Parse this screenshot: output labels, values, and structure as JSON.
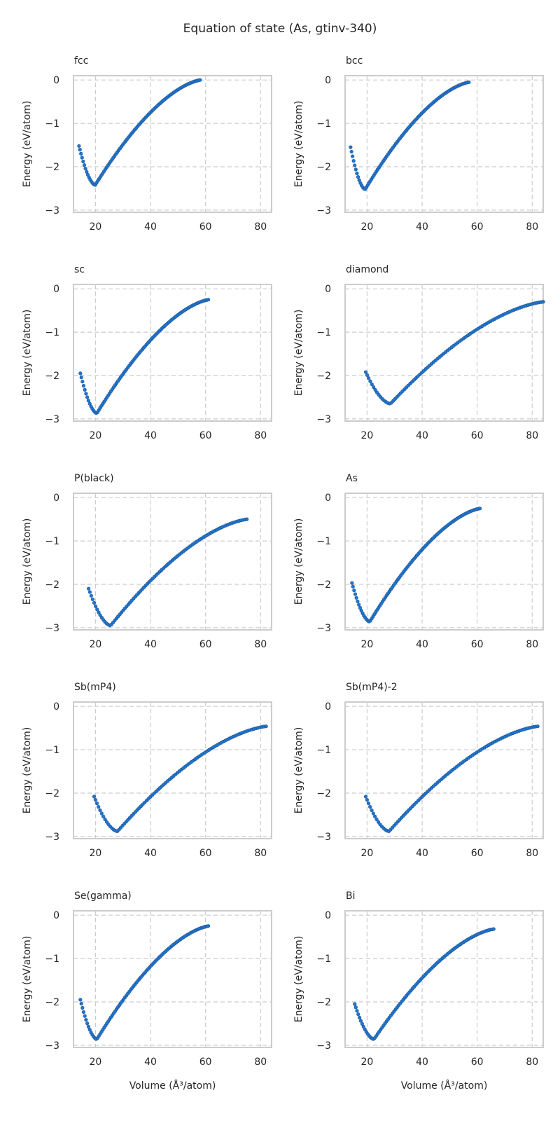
{
  "figure": {
    "suptitle": "Equation of state (As, gtinv-340)"
  },
  "style": {
    "marker_color": "#1f77d0",
    "marker_edge": "#1f4e8c",
    "grid_color": "#cccccc",
    "frame_color": "#cccccc",
    "text_color": "#262626",
    "grid": true,
    "grid_style": "dashed"
  },
  "chart_data": [
    {
      "type": "scatter",
      "title": "fcc",
      "xlabel": "",
      "ylabel": "Energy (eV/atom)",
      "xlim": [
        12,
        84
      ],
      "ylim": [
        -3.05,
        0.1
      ],
      "xticks": [
        "20",
        "40",
        "60",
        "80"
      ],
      "yticks": [
        "0",
        "−1",
        "−2",
        "−3"
      ],
      "vmin": 14,
      "vmax": 58,
      "V0": 19.9,
      "E0": -2.42,
      "Ehigh": 0.0,
      "Elow": -1.52
    },
    {
      "type": "scatter",
      "title": "bcc",
      "xlabel": "",
      "ylabel": "Energy (eV/atom)",
      "xlim": [
        12,
        84
      ],
      "ylim": [
        -3.05,
        0.1
      ],
      "xticks": [
        "20",
        "40",
        "60",
        "80"
      ],
      "yticks": [
        "0",
        "−1",
        "−2",
        "−3"
      ],
      "vmin": 14,
      "vmax": 57,
      "V0": 19.3,
      "E0": -2.52,
      "Ehigh": -0.05,
      "Elow": -1.55
    },
    {
      "type": "scatter",
      "title": "sc",
      "xlabel": "",
      "ylabel": "Energy (eV/atom)",
      "xlim": [
        12,
        84
      ],
      "ylim": [
        -3.05,
        0.1
      ],
      "xticks": [
        "20",
        "40",
        "60",
        "80"
      ],
      "yticks": [
        "0",
        "−1",
        "−2",
        "−3"
      ],
      "vmin": 14.5,
      "vmax": 61,
      "V0": 20.5,
      "E0": -2.87,
      "Ehigh": -0.25,
      "Elow": -1.95
    },
    {
      "type": "scatter",
      "title": "diamond",
      "xlabel": "",
      "ylabel": "Energy (eV/atom)",
      "xlim": [
        12,
        84
      ],
      "ylim": [
        -3.05,
        0.1
      ],
      "xticks": [
        "20",
        "40",
        "60",
        "80"
      ],
      "yticks": [
        "0",
        "−1",
        "−2",
        "−3"
      ],
      "vmin": 19.5,
      "vmax": 84,
      "V0": 28.5,
      "E0": -2.65,
      "Ehigh": -0.3,
      "Elow": -1.92
    },
    {
      "type": "scatter",
      "title": "P(black)",
      "xlabel": "",
      "ylabel": "Energy (eV/atom)",
      "xlim": [
        12,
        84
      ],
      "ylim": [
        -3.05,
        0.1
      ],
      "xticks": [
        "20",
        "40",
        "60",
        "80"
      ],
      "yticks": [
        "0",
        "−1",
        "−2",
        "−3"
      ],
      "vmin": 17.5,
      "vmax": 75,
      "V0": 25.5,
      "E0": -2.95,
      "Ehigh": -0.5,
      "Elow": -2.1
    },
    {
      "type": "scatter",
      "title": "As",
      "xlabel": "",
      "ylabel": "Energy (eV/atom)",
      "xlim": [
        12,
        84
      ],
      "ylim": [
        -3.05,
        0.1
      ],
      "xticks": [
        "20",
        "40",
        "60",
        "80"
      ],
      "yticks": [
        "0",
        "−1",
        "−2",
        "−3"
      ],
      "vmin": 14.5,
      "vmax": 61,
      "V0": 21.0,
      "E0": -2.86,
      "Ehigh": -0.25,
      "Elow": -1.97
    },
    {
      "type": "scatter",
      "title": "Sb(mP4)",
      "xlabel": "",
      "ylabel": "Energy (eV/atom)",
      "xlim": [
        12,
        84
      ],
      "ylim": [
        -3.05,
        0.1
      ],
      "xticks": [
        "20",
        "40",
        "60",
        "80"
      ],
      "yticks": [
        "0",
        "−1",
        "−2",
        "−3"
      ],
      "vmin": 19.5,
      "vmax": 82,
      "V0": 28.0,
      "E0": -2.88,
      "Ehigh": -0.46,
      "Elow": -2.08
    },
    {
      "type": "scatter",
      "title": "Sb(mP4)-2",
      "xlabel": "",
      "ylabel": "Energy (eV/atom)",
      "xlim": [
        12,
        84
      ],
      "ylim": [
        -3.05,
        0.1
      ],
      "xticks": [
        "20",
        "40",
        "60",
        "80"
      ],
      "yticks": [
        "0",
        "−1",
        "−2",
        "−3"
      ],
      "vmin": 19.5,
      "vmax": 82,
      "V0": 28.0,
      "E0": -2.88,
      "Ehigh": -0.46,
      "Elow": -2.08
    },
    {
      "type": "scatter",
      "title": "Se(gamma)",
      "xlabel": "Volume (Å³/atom)",
      "ylabel": "Energy (eV/atom)",
      "xlim": [
        12,
        84
      ],
      "ylim": [
        -3.05,
        0.1
      ],
      "xticks": [
        "20",
        "40",
        "60",
        "80"
      ],
      "yticks": [
        "0",
        "−1",
        "−2",
        "−3"
      ],
      "vmin": 14.5,
      "vmax": 61,
      "V0": 20.5,
      "E0": -2.86,
      "Ehigh": -0.25,
      "Elow": -1.95
    },
    {
      "type": "scatter",
      "title": "Bi",
      "xlabel": "Volume (Å³/atom)",
      "ylabel": "Energy (eV/atom)",
      "xlim": [
        12,
        84
      ],
      "ylim": [
        -3.05,
        0.1
      ],
      "xticks": [
        "20",
        "40",
        "60",
        "80"
      ],
      "yticks": [
        "0",
        "−1",
        "−2",
        "−3"
      ],
      "vmin": 15.5,
      "vmax": 66,
      "V0": 22.5,
      "E0": -2.86,
      "Ehigh": -0.32,
      "Elow": -2.05
    }
  ]
}
